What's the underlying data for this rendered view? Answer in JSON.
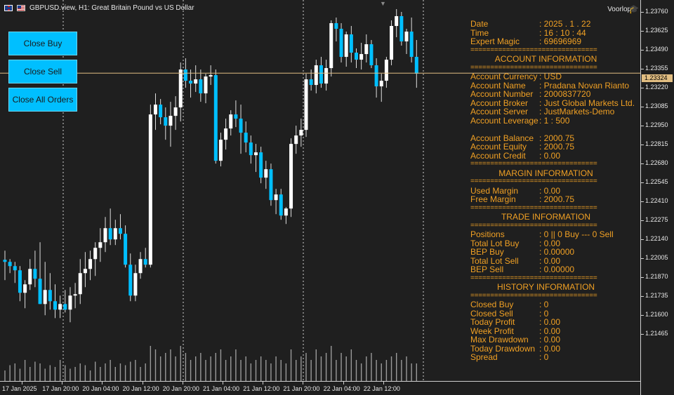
{
  "window": {
    "title": "GBPUSD.view, H1:  Great Britain Pound vs US Dollar",
    "trader": "Voorloper",
    "scroll_marker": "▼"
  },
  "buttons": {
    "close_buy": "Close Buy",
    "close_sell": "Close Sell",
    "close_all": "Close All Orders"
  },
  "separator": "================================",
  "info": {
    "date": {
      "label": "Date",
      "value": ": 2025 . 1 . 22"
    },
    "time": {
      "label": "Time",
      "value": ": 16 : 10 : 44"
    },
    "magic": {
      "label": "Expert Magic",
      "value": ": 69696969"
    },
    "account_header": "ACCOUNT INFORMATION",
    "account": [
      {
        "label": "Account Currency",
        "value": ": USD"
      },
      {
        "label": "Account Name",
        "value": ": Pradana Novan Rianto"
      },
      {
        "label": "Account Number",
        "value": ": 2000837720"
      },
      {
        "label": "Account Broker",
        "value": ": Just Global Markets Ltd."
      },
      {
        "label": "Account Server",
        "value": ": JustMarkets-Demo"
      },
      {
        "label": "Account Leverage",
        "value": ": 1 : 500"
      }
    ],
    "balance": [
      {
        "label": "Account Balance",
        "value": ": 2000.75"
      },
      {
        "label": "Account Equity",
        "value": ": 2000.75"
      },
      {
        "label": "Account Credit",
        "value": ": 0.00"
      }
    ],
    "margin_header": "MARGIN INFORMATION",
    "margin": [
      {
        "label": "Used Margin",
        "value": ": 0.00"
      },
      {
        "label": "Free Margin",
        "value": ": 2000.75"
      }
    ],
    "trade_header": "TRADE INFORMATION",
    "trade": [
      {
        "label": "Positions",
        "value": ": 0  ||  0 Buy --- 0 Sell"
      },
      {
        "label": "Total Lot Buy",
        "value": ": 0.00"
      },
      {
        "label": "BEP Buy",
        "value": ": 0.00000"
      },
      {
        "label": "Total Lot Sell",
        "value": ": 0.00"
      },
      {
        "label": "BEP Sell",
        "value": ": 0.00000"
      }
    ],
    "history_header": "HISTORY INFORMATION",
    "history": [
      {
        "label": "Closed Buy",
        "value": ": 0"
      },
      {
        "label": "Closed Sell",
        "value": ": 0"
      },
      {
        "label": "Today Profit",
        "value": ": 0.00"
      },
      {
        "label": "Week Profit",
        "value": ": 0.00"
      },
      {
        "label": "Max Drawdown",
        "value": ": 0.00"
      },
      {
        "label": "Today Drawdown",
        "value": ": 0.00"
      },
      {
        "label": "Spread",
        "value": ": 0"
      }
    ]
  },
  "price_scale": {
    "labels": [
      "1.23760",
      "1.23625",
      "1.23490",
      "1.23355",
      "1.23220",
      "1.23085",
      "1.22950",
      "1.22815",
      "1.22680",
      "1.22545",
      "1.22410",
      "1.22275",
      "1.22140",
      "1.22005",
      "1.21870",
      "1.21735",
      "1.21600",
      "1.21465"
    ],
    "current": "1.23324"
  },
  "time_axis": {
    "labels": [
      "17 Jan 2025",
      "17 Jan 20:00",
      "20 Jan 04:00",
      "20 Jan 12:00",
      "20 Jan 20:00",
      "21 Jan 04:00",
      "21 Jan 12:00",
      "21 Jan 20:00",
      "22 Jan 04:00",
      "22 Jan 12:00"
    ]
  },
  "colors": {
    "bull": "#ffffff",
    "bear": "#00bfff",
    "wick": "#e0e0e0",
    "info_text": "#f0a024",
    "button": "#00bfff",
    "price_line": "#e2be82",
    "period_separator": "#d0d0d0",
    "background": "#1f1f1f"
  },
  "chart_data": {
    "type": "candlestick",
    "symbol": "GBPUSD",
    "timeframe": "H1",
    "ylim": [
      1.214,
      1.2381
    ],
    "current_price": 1.23324,
    "candles": [
      [
        1.21995,
        1.2206,
        1.2185,
        1.2198
      ],
      [
        1.2198,
        1.22,
        1.219,
        1.2195
      ],
      [
        1.2195,
        1.2198,
        1.2183,
        1.2192
      ],
      [
        1.2192,
        1.2195,
        1.217,
        1.2176
      ],
      [
        1.2176,
        1.2185,
        1.2165,
        1.2182
      ],
      [
        1.2182,
        1.22,
        1.2178,
        1.2193
      ],
      [
        1.2193,
        1.2206,
        1.218,
        1.2186
      ],
      [
        1.2186,
        1.2212,
        1.2168,
        1.2168
      ],
      [
        1.2168,
        1.2198,
        1.216,
        1.2178
      ],
      [
        1.2178,
        1.219,
        1.2164,
        1.217
      ],
      [
        1.217,
        1.2182,
        1.2158,
        1.2164
      ],
      [
        1.2164,
        1.2174,
        1.2158,
        1.2168
      ],
      [
        1.2168,
        1.2178,
        1.2162,
        1.2164
      ],
      [
        1.2164,
        1.218,
        1.2155,
        1.2174
      ],
      [
        1.2174,
        1.2183,
        1.2165,
        1.2175
      ],
      [
        1.2175,
        1.22,
        1.2168,
        1.219
      ],
      [
        1.219,
        1.2205,
        1.218,
        1.2193
      ],
      [
        1.2193,
        1.2206,
        1.2185,
        1.22
      ],
      [
        1.22,
        1.2212,
        1.2188,
        1.2208
      ],
      [
        1.2208,
        1.2222,
        1.2198,
        1.2212
      ],
      [
        1.2212,
        1.223,
        1.2205,
        1.2222
      ],
      [
        1.2222,
        1.2236,
        1.221,
        1.2214
      ],
      [
        1.2214,
        1.2228,
        1.221,
        1.2222
      ],
      [
        1.2222,
        1.2232,
        1.2214,
        1.2218
      ],
      [
        1.2218,
        1.2224,
        1.2194,
        1.2196
      ],
      [
        1.2196,
        1.2204,
        1.217,
        1.2174
      ],
      [
        1.2174,
        1.2196,
        1.217,
        1.219
      ],
      [
        1.219,
        1.2205,
        1.2186,
        1.22
      ],
      [
        1.22,
        1.2208,
        1.2194,
        1.2196
      ],
      [
        1.2196,
        1.231,
        1.2194,
        1.2303
      ],
      [
        1.2303,
        1.2318,
        1.2292,
        1.231
      ],
      [
        1.231,
        1.2314,
        1.2296,
        1.2301
      ],
      [
        1.2301,
        1.2308,
        1.2285,
        1.2295
      ],
      [
        1.2295,
        1.2312,
        1.228,
        1.2302
      ],
      [
        1.2302,
        1.2316,
        1.2292,
        1.2308
      ],
      [
        1.2308,
        1.234,
        1.2298,
        1.2335
      ],
      [
        1.2335,
        1.2343,
        1.2322,
        1.2327
      ],
      [
        1.2327,
        1.2335,
        1.2315,
        1.2325
      ],
      [
        1.2325,
        1.2338,
        1.2319,
        1.2328
      ],
      [
        1.2328,
        1.2335,
        1.2312,
        1.2318
      ],
      [
        1.2318,
        1.2332,
        1.2311,
        1.233
      ],
      [
        1.233,
        1.2338,
        1.2324,
        1.2331
      ],
      [
        1.2331,
        1.2335,
        1.2268,
        1.227
      ],
      [
        1.227,
        1.229,
        1.2266,
        1.2285
      ],
      [
        1.2285,
        1.23,
        1.2278,
        1.2293
      ],
      [
        1.2293,
        1.2306,
        1.2288,
        1.2303
      ],
      [
        1.2303,
        1.2313,
        1.2294,
        1.23
      ],
      [
        1.23,
        1.231,
        1.2275,
        1.229
      ],
      [
        1.229,
        1.2298,
        1.2276,
        1.2283
      ],
      [
        1.2283,
        1.2288,
        1.2268,
        1.2274
      ],
      [
        1.2274,
        1.2282,
        1.2262,
        1.2276
      ],
      [
        1.2276,
        1.228,
        1.2254,
        1.2258
      ],
      [
        1.2258,
        1.227,
        1.225,
        1.2264
      ],
      [
        1.2264,
        1.2268,
        1.2238,
        1.2242
      ],
      [
        1.2242,
        1.225,
        1.2232,
        1.2246
      ],
      [
        1.2246,
        1.225,
        1.2228,
        1.2231
      ],
      [
        1.2231,
        1.2237,
        1.2225,
        1.2236
      ],
      [
        1.2236,
        1.2286,
        1.223,
        1.2282
      ],
      [
        1.2282,
        1.2295,
        1.2275,
        1.2288
      ],
      [
        1.2288,
        1.23,
        1.228,
        1.2292
      ],
      [
        1.2292,
        1.2332,
        1.2287,
        1.2328
      ],
      [
        1.2328,
        1.2335,
        1.232,
        1.2324
      ],
      [
        1.2324,
        1.2342,
        1.2318,
        1.2338
      ],
      [
        1.2338,
        1.2344,
        1.2322,
        1.2325
      ],
      [
        1.2325,
        1.2342,
        1.232,
        1.2336
      ],
      [
        1.2336,
        1.237,
        1.233,
        1.2368
      ],
      [
        1.2368,
        1.2372,
        1.2355,
        1.2364
      ],
      [
        1.2364,
        1.2368,
        1.234,
        1.2344
      ],
      [
        1.2344,
        1.2362,
        1.2337,
        1.236
      ],
      [
        1.236,
        1.2366,
        1.234,
        1.2347
      ],
      [
        1.2347,
        1.235,
        1.2336,
        1.2342
      ],
      [
        1.2342,
        1.2354,
        1.2335,
        1.2346
      ],
      [
        1.2346,
        1.236,
        1.234,
        1.2353
      ],
      [
        1.2353,
        1.2356,
        1.2336,
        1.2338
      ],
      [
        1.2338,
        1.2343,
        1.2315,
        1.2323
      ],
      [
        1.2323,
        1.2332,
        1.2312,
        1.2327
      ],
      [
        1.2327,
        1.2344,
        1.2322,
        1.2342
      ],
      [
        1.2342,
        1.237,
        1.2338,
        1.2366
      ],
      [
        1.2366,
        1.2378,
        1.2358,
        1.2373
      ],
      [
        1.2373,
        1.2376,
        1.2352,
        1.2355
      ],
      [
        1.2355,
        1.2364,
        1.2346,
        1.2362
      ],
      [
        1.2362,
        1.2372,
        1.234,
        1.2344
      ],
      [
        1.2344,
        1.2356,
        1.2322,
        1.2332
      ]
    ],
    "volume_relative": [
      0.3,
      0.45,
      0.5,
      0.35,
      0.6,
      0.4,
      0.55,
      0.5,
      0.35,
      0.45,
      0.4,
      0.6,
      0.45,
      0.35,
      0.4,
      0.5,
      0.45,
      0.3,
      0.55,
      0.4,
      0.5,
      0.6,
      0.4,
      0.5,
      0.45,
      0.55,
      0.6,
      0.4,
      0.5,
      1.0,
      0.9,
      0.7,
      0.8,
      0.9,
      0.7,
      1.0,
      0.8,
      0.6,
      0.7,
      0.8,
      0.6,
      0.7,
      0.8,
      0.9,
      0.6,
      0.7,
      0.9,
      0.6,
      0.7,
      0.5,
      0.6,
      0.7,
      0.6,
      0.5,
      0.7,
      0.6,
      0.5,
      0.9,
      0.6,
      0.7,
      0.8,
      0.6,
      0.9,
      0.7,
      0.8,
      1.0,
      0.6,
      0.8,
      0.7,
      0.9,
      0.6,
      0.5,
      0.7,
      0.8,
      0.6,
      0.5,
      0.6,
      0.7,
      0.8,
      0.6,
      0.7,
      0.5,
      0.5
    ]
  }
}
